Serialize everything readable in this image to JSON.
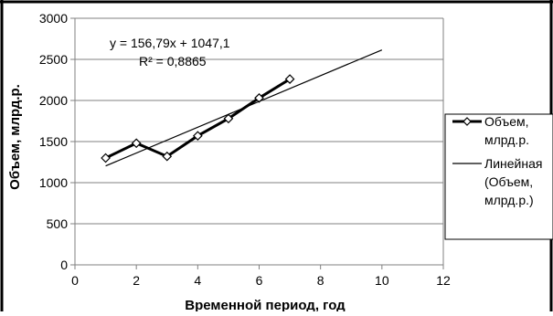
{
  "chart_data": {
    "type": "scatter",
    "title": "",
    "xlabel": "Временной период, год",
    "ylabel": "Объем, млрд.р.",
    "xlim": [
      0,
      12
    ],
    "ylim": [
      0,
      3000
    ],
    "x_ticks": [
      "0",
      "2",
      "4",
      "6",
      "8",
      "10",
      "12"
    ],
    "y_ticks": [
      "0",
      "500",
      "1000",
      "1500",
      "2000",
      "2500",
      "3000"
    ],
    "x_tick_values": [
      0,
      2,
      4,
      6,
      8,
      10,
      12
    ],
    "y_tick_values": [
      0,
      500,
      1000,
      1500,
      2000,
      2500,
      3000
    ],
    "grid": "horizontal",
    "legend_position": "right",
    "series": [
      {
        "name": "Объем, млрд.р.",
        "style": "line-with-diamond-markers",
        "color": "#000000",
        "x": [
          1,
          2,
          3,
          4,
          5,
          6,
          7
        ],
        "y": [
          1300,
          1480,
          1320,
          1570,
          1780,
          2030,
          2260
        ]
      },
      {
        "name": "Линейная (Объем, млрд.р.)",
        "style": "trendline",
        "color": "#000000",
        "x": [
          1,
          10
        ],
        "y": [
          1203.89,
          2615
        ]
      }
    ],
    "legend": {
      "entries": [
        {
          "lines": [
            "Объем,",
            "млрд.р."
          ]
        },
        {
          "lines": [
            "Линейная",
            "(Объем,",
            "млрд.р.)"
          ]
        }
      ]
    },
    "annotations": {
      "equation": "y = 156,79x + 1047,1",
      "r_squared": "R² = 0,8865"
    }
  }
}
